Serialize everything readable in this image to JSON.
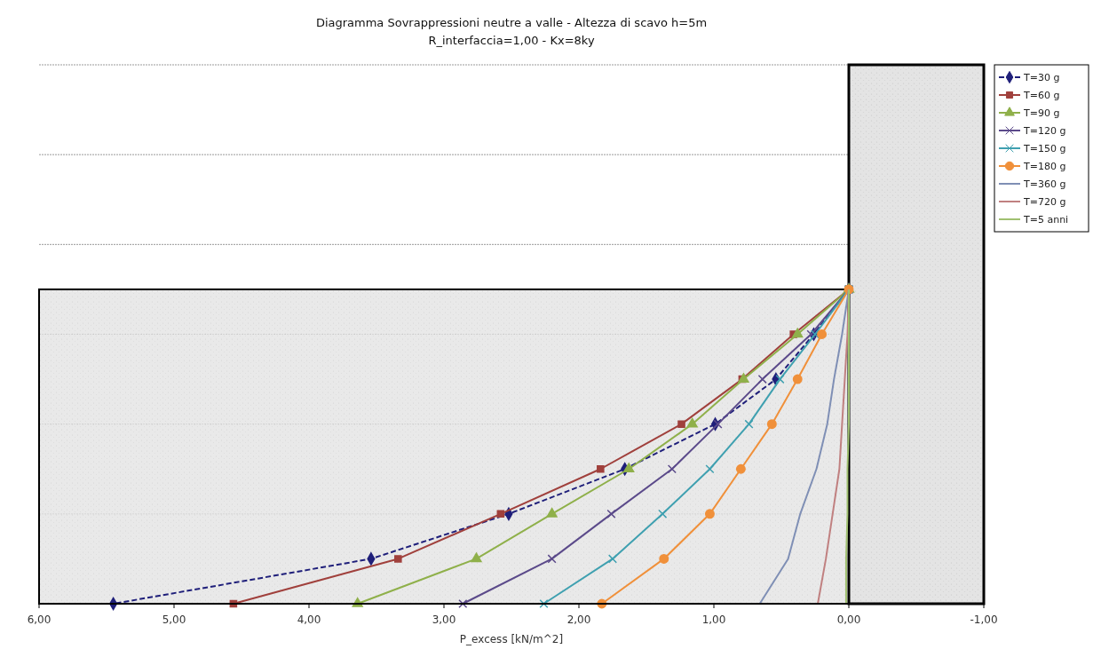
{
  "chart_data": {
    "type": "line",
    "orientation": "horizontal",
    "title": "Diagramma Sovrappressioni neutre a valle - Altezza di scavo h=5m",
    "subtitle": "R_interfaccia=1,00 - Kx=8ky",
    "xlabel": "P_excess  [kN/m^2]",
    "categories": [
      null,
      null,
      null,
      null,
      null,
      null,
      null,
      null,
      null,
      null,
      null,
      null,
      null
    ],
    "xlim": [
      6,
      -1
    ],
    "xticks": [
      {
        "value": 6,
        "label": "6,00"
      },
      {
        "value": 5,
        "label": "5,00"
      },
      {
        "value": 4,
        "label": "4,00"
      },
      {
        "value": 3,
        "label": "3,00"
      },
      {
        "value": 2,
        "label": "2,00"
      },
      {
        "value": 1,
        "label": "1,00"
      },
      {
        "value": 0,
        "label": "0,00"
      },
      {
        "value": -1,
        "label": "-1,00"
      }
    ],
    "grid": "y",
    "legend": "top right",
    "series": [
      {
        "name": "T=30 g",
        "color": "#1f1f7a",
        "marker": "diamond",
        "line_style": "dashed",
        "values": [
          null,
          null,
          null,
          null,
          null,
          0,
          0.26,
          0.54,
          0.99,
          1.66,
          2.52,
          3.54,
          5.45
        ]
      },
      {
        "name": "T=60 g",
        "color": "#a0403c",
        "marker": "square",
        "values": [
          null,
          null,
          null,
          null,
          null,
          0,
          0.41,
          0.79,
          1.24,
          1.84,
          2.58,
          3.34,
          4.56
        ]
      },
      {
        "name": "T=90 g",
        "color": "#8fb04a",
        "marker": "triangle",
        "values": [
          null,
          null,
          null,
          null,
          null,
          0,
          0.38,
          0.78,
          1.16,
          1.63,
          2.2,
          2.76,
          3.64
        ]
      },
      {
        "name": "T=120 g",
        "color": "#5b4a8a",
        "marker": "cross",
        "values": [
          null,
          null,
          null,
          null,
          null,
          0,
          0.28,
          0.64,
          0.97,
          1.31,
          1.76,
          2.2,
          2.86
        ]
      },
      {
        "name": "T=150 g",
        "color": "#3fa0b0",
        "marker": "cross",
        "values": [
          null,
          null,
          null,
          null,
          null,
          0,
          0.25,
          0.51,
          0.74,
          1.03,
          1.38,
          1.75,
          2.26
        ]
      },
      {
        "name": "T=180 g",
        "color": "#f0903a",
        "marker": "circle",
        "values": [
          null,
          null,
          null,
          null,
          null,
          0,
          0.2,
          0.38,
          0.57,
          0.8,
          1.03,
          1.37,
          1.83
        ]
      },
      {
        "name": "T=360 g",
        "color": "#7f8fb5",
        "marker": "none",
        "values": [
          null,
          null,
          null,
          null,
          null,
          0,
          0.05,
          0.11,
          0.16,
          0.24,
          0.36,
          0.45,
          0.66
        ]
      },
      {
        "name": "T=720 g",
        "color": "#c08080",
        "marker": "none",
        "values": [
          null,
          null,
          null,
          null,
          null,
          0,
          0.01,
          0.03,
          0.05,
          0.07,
          0.12,
          0.17,
          0.23
        ]
      },
      {
        "name": "T=5 anni",
        "color": "#a0c070",
        "marker": "none",
        "values": [
          null,
          null,
          null,
          null,
          null,
          0,
          0,
          0,
          0,
          0.01,
          0.01,
          0.02,
          0.02
        ]
      }
    ]
  }
}
